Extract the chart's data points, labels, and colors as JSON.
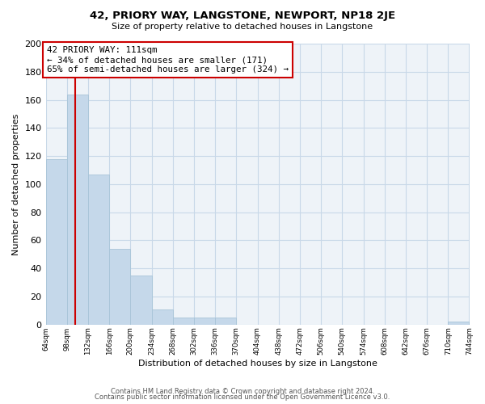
{
  "title": "42, PRIORY WAY, LANGSTONE, NEWPORT, NP18 2JE",
  "subtitle": "Size of property relative to detached houses in Langstone",
  "xlabel": "Distribution of detached houses by size in Langstone",
  "ylabel": "Number of detached properties",
  "bin_edges": [
    64,
    98,
    132,
    166,
    200,
    234,
    268,
    302,
    336,
    370,
    404,
    438,
    472,
    506,
    540,
    574,
    608,
    642,
    676,
    710,
    744
  ],
  "bin_counts": [
    118,
    164,
    107,
    54,
    35,
    11,
    5,
    5,
    5,
    0,
    0,
    0,
    0,
    0,
    0,
    0,
    0,
    0,
    0,
    2
  ],
  "bar_color": "#c5d8ea",
  "bar_edge_color": "#a8c4d8",
  "property_line_x": 111,
  "property_line_color": "#cc0000",
  "annotation_text": "42 PRIORY WAY: 111sqm\n← 34% of detached houses are smaller (171)\n65% of semi-detached houses are larger (324) →",
  "annotation_box_color": "#ffffff",
  "annotation_box_edge_color": "#cc0000",
  "ylim": [
    0,
    200
  ],
  "yticks": [
    0,
    20,
    40,
    60,
    80,
    100,
    120,
    140,
    160,
    180,
    200
  ],
  "tick_labels": [
    "64sqm",
    "98sqm",
    "132sqm",
    "166sqm",
    "200sqm",
    "234sqm",
    "268sqm",
    "302sqm",
    "336sqm",
    "370sqm",
    "404sqm",
    "438sqm",
    "472sqm",
    "506sqm",
    "540sqm",
    "574sqm",
    "608sqm",
    "642sqm",
    "676sqm",
    "710sqm",
    "744sqm"
  ],
  "footer_line1": "Contains HM Land Registry data © Crown copyright and database right 2024.",
  "footer_line2": "Contains public sector information licensed under the Open Government Licence v3.0.",
  "background_color": "#ffffff",
  "grid_color": "#c8d8e8",
  "plot_bg_color": "#eef3f8"
}
